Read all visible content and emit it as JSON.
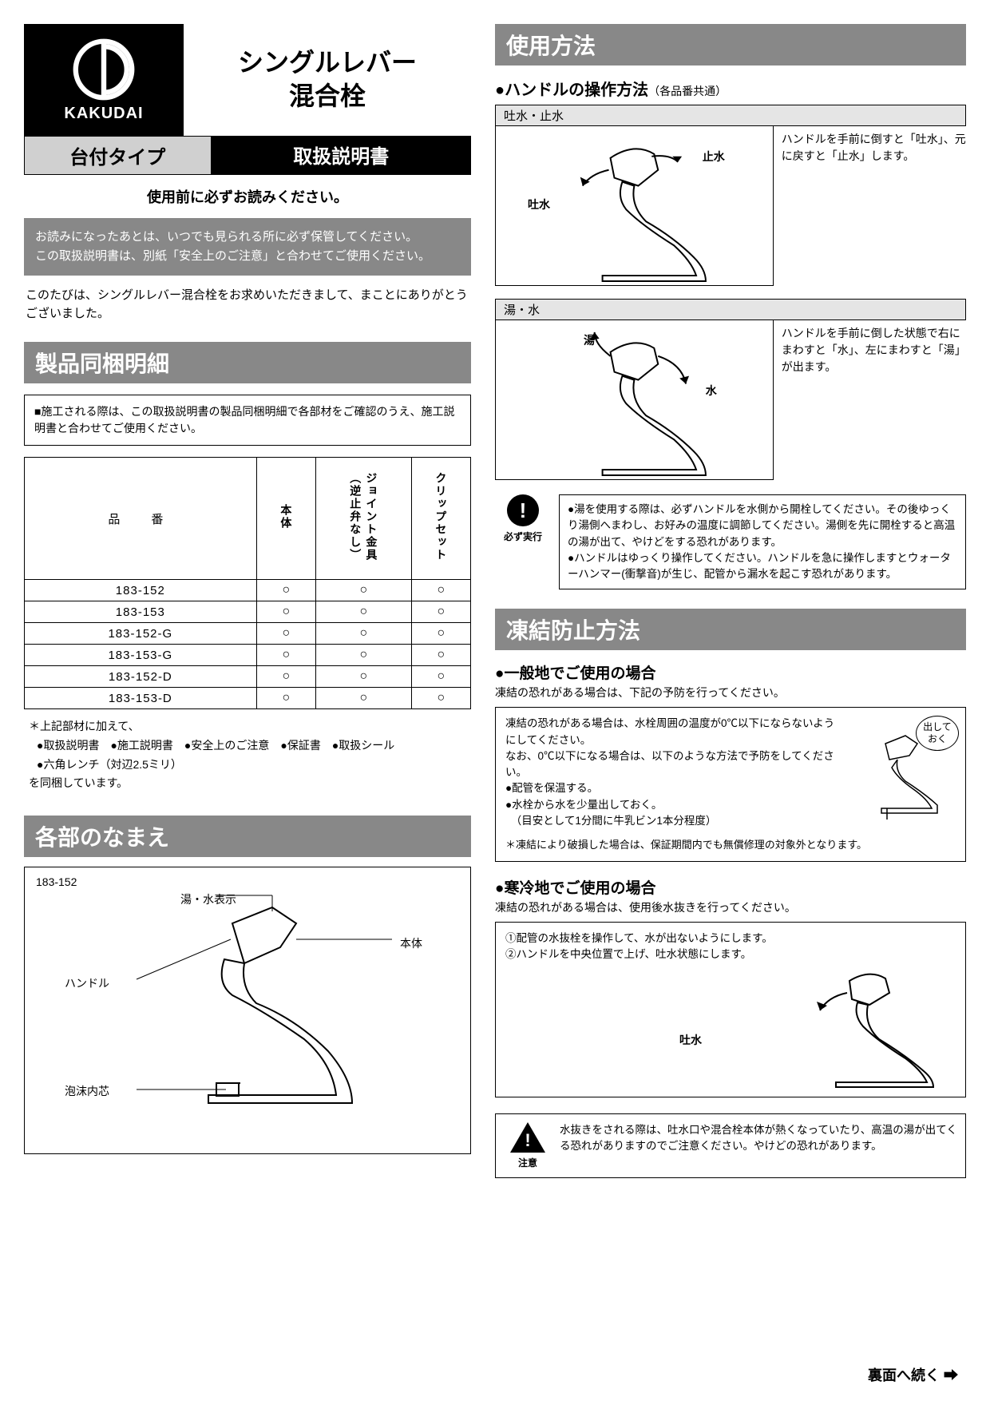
{
  "brand": "KAKUDAI",
  "product_title_l1": "シングルレバー",
  "product_title_l2": "混合栓",
  "type_label": "台付タイプ",
  "manual_label": "取扱説明書",
  "pre_read": "使用前に必ずお読みください。",
  "grey_block_l1": "お読みになったあとは、いつでも見られる所に必ず保管してください。",
  "grey_block_l2": "この取扱説明書は、別紙「安全上のご注意」と合わせてご使用ください。",
  "thanks": "このたびは、シングルレバー混合栓をお求めいただきまして、まことにありがとうございました。",
  "section_parts": "製品同梱明細",
  "parts_note": "■施工される際は、この取扱説明書の製品同梱明細で各部材をご確認のうえ、施工説明書と合わせてご使用ください。",
  "table": {
    "header_pn": "品　番",
    "col1": "本体",
    "col2_a": "ジョイント金具",
    "col2_b": "（逆止弁なし）",
    "col3": "クリップセット",
    "rows": [
      {
        "pn": "183-152",
        "a": "○",
        "b": "○",
        "c": "○"
      },
      {
        "pn": "183-153",
        "a": "○",
        "b": "○",
        "c": "○"
      },
      {
        "pn": "183-152-G",
        "a": "○",
        "b": "○",
        "c": "○"
      },
      {
        "pn": "183-153-G",
        "a": "○",
        "b": "○",
        "c": "○"
      },
      {
        "pn": "183-152-D",
        "a": "○",
        "b": "○",
        "c": "○"
      },
      {
        "pn": "183-153-D",
        "a": "○",
        "b": "○",
        "c": "○"
      }
    ]
  },
  "footnote_lead": "＊上記部材に加えて、",
  "footnote_bullets": "●取扱説明書　●施工説明書　●安全上のご注意　●保証書　●取扱シール\n●六角レンチ（対辺2.5ミリ）",
  "footnote_tail": "を同梱しています。",
  "section_names": "各部のなまえ",
  "diagram": {
    "model": "183-152",
    "label_hotcold": "湯・水表示",
    "label_body": "本体",
    "label_handle": "ハンドル",
    "label_aerator": "泡沫内芯"
  },
  "section_usage": "使用方法",
  "usage_heading": "●ハンドルの操作方法",
  "usage_heading_note": "（各品番共通）",
  "panel1": {
    "title": "吐水・止水",
    "lbl_stop": "止水",
    "lbl_out": "吐水",
    "text": "ハンドルを手前に倒すと「吐水」、元に戻すと「止水」します。"
  },
  "panel2": {
    "title": "湯・水",
    "lbl_hot": "湯",
    "lbl_cold": "水",
    "text": "ハンドルを手前に倒した状態で右にまわすと「水」、左にまわすと「湯」が出ます。"
  },
  "must_do": "必ず実行",
  "caution1": "●湯を使用する際は、必ずハンドルを水側から開栓してください。その後ゆっくり湯側へまわし、お好みの温度に調節してください。湯側を先に開栓すると高温の湯が出て、やけどをする恐れがあります。\n●ハンドルはゆっくり操作してください。ハンドルを急に操作しますとウォーターハンマー(衝撃音)が生じ、配管から漏水を起こす恐れがあります。",
  "section_freeze": "凍結防止方法",
  "freeze_a_head": "●一般地でご使用の場合",
  "freeze_a_lead": "凍結の恐れがある場合は、下記の予防を行ってください。",
  "freeze_a_box": "凍結の恐れがある場合は、水栓周囲の温度が0℃以下にならないようにしてください。\nなお、0℃以下になる場合は、以下のような方法で予防をしてください。\n●配管を保温する。\n●水栓から水を少量出しておく。\n　（目安として1分間に牛乳ビン1本分程度）",
  "freeze_balloon": "出して\nおく",
  "freeze_a_foot": "＊凍結により破損した場合は、保証期間内でも無償修理の対象外となります。",
  "freeze_b_head": "●寒冷地でご使用の場合",
  "freeze_b_lead": "凍結の恐れがある場合は、使用後水抜きを行ってください。",
  "freeze_b_box": "①配管の水抜栓を操作して、水が出ないようにします。\n②ハンドルを中央位置で上げ、吐水状態にします。",
  "freeze_b_lbl": "吐水",
  "warn_label": "注意",
  "warn_text": "水抜きをされる際は、吐水口や混合栓本体が熱くなっていたり、高温の湯が出てくる恐れがありますのでご注意ください。やけどの恐れがあります。",
  "continue": "裏面へ続く ➡"
}
